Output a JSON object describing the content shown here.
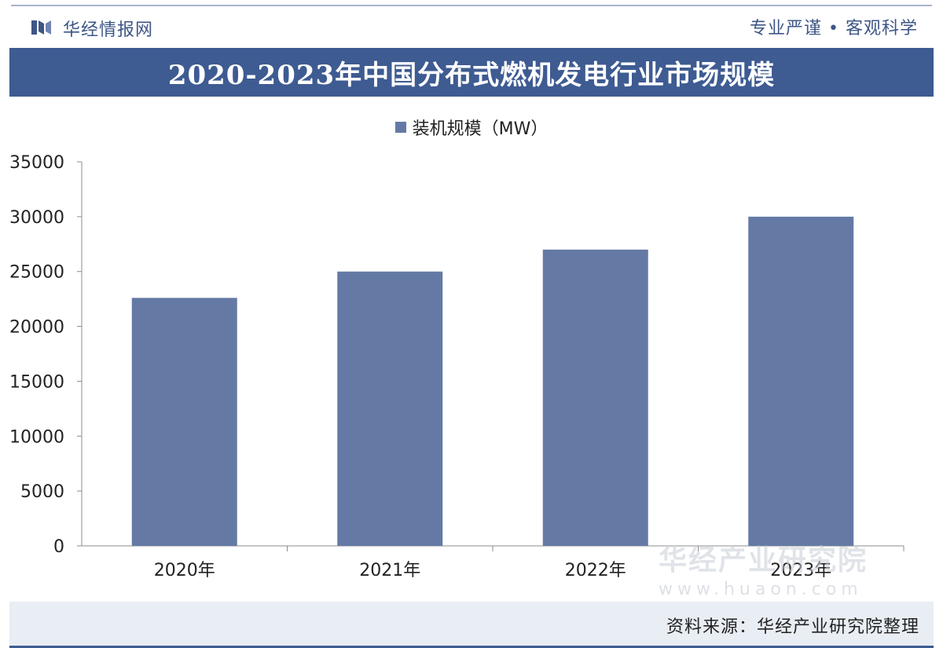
{
  "header": {
    "logo_text": "华经情报网",
    "slogan": "专业严谨 • 客观科学"
  },
  "watermark": {
    "text": "华经产业研究院",
    "url": "www.huaon.com"
  },
  "footer": {
    "source": "资料来源：华经产业研究院整理"
  },
  "colors": {
    "title_band": "#3e5b92",
    "bar": "#647aa5",
    "brand_text": "#3e5686"
  },
  "chart_data": {
    "type": "bar",
    "title": "2020-2023年中国分布式燃机发电行业市场规模",
    "categories": [
      "2020年",
      "2021年",
      "2022年",
      "2023年"
    ],
    "series": [
      {
        "name": "装机规模（MW）",
        "values": [
          22600,
          25000,
          27000,
          30000
        ]
      }
    ],
    "yticks": [
      "0",
      "5000",
      "10000",
      "15000",
      "20000",
      "25000",
      "30000",
      "35000"
    ],
    "ylim": [
      0,
      35000
    ],
    "grid": false,
    "legend": "top-center"
  }
}
